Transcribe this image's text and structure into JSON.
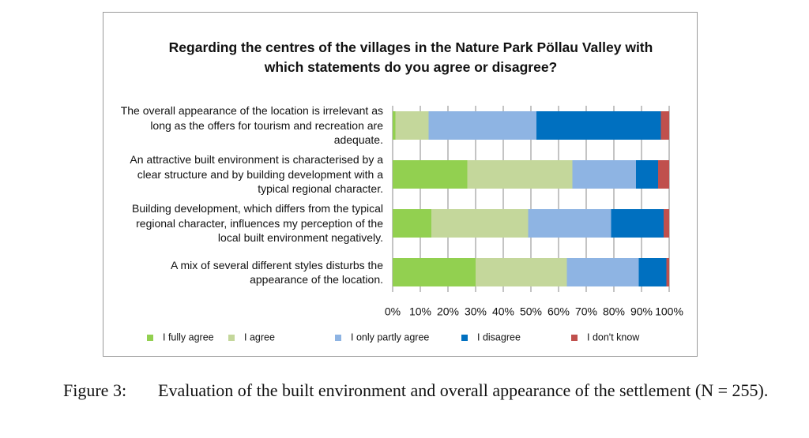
{
  "chart_data": {
    "type": "stacked-barh",
    "title": "Regarding the centres of the villages in the Nature Park Pöllau Valley with which statements do you agree or disagree?",
    "categories": [
      "The overall appearance of the location is irrelevant as long as the offers for tourism and recreation are adequate.",
      "An attractive built environment is characterised by a clear structure and by building development with a typical regional character.",
      "Building development, which differs from the typical regional character, influences my perception of the local built environment negatively.",
      "A mix of several different styles disturbs the appearance of the location."
    ],
    "series": [
      {
        "name": "I fully agree",
        "color": "#92d050",
        "values": [
          1,
          27,
          14,
          30
        ]
      },
      {
        "name": "I agree",
        "color": "#c4d79b",
        "values": [
          12,
          38,
          35,
          33
        ]
      },
      {
        "name": "I only partly agree",
        "color": "#8eb4e3",
        "values": [
          39,
          23,
          30,
          26
        ]
      },
      {
        "name": "I disagree",
        "color": "#0070c0",
        "values": [
          45,
          8,
          19,
          10
        ]
      },
      {
        "name": "I don't know",
        "color": "#c0504d",
        "values": [
          3,
          4,
          2,
          1
        ]
      }
    ],
    "xlim": [
      0,
      100
    ],
    "xticks": [
      {
        "value": 0,
        "label": "0%"
      },
      {
        "value": 10,
        "label": "10%"
      },
      {
        "value": 20,
        "label": "20%"
      },
      {
        "value": 30,
        "label": "30%"
      },
      {
        "value": 40,
        "label": "40%"
      },
      {
        "value": 50,
        "label": "50%"
      },
      {
        "value": 60,
        "label": "60%"
      },
      {
        "value": 70,
        "label": "70%"
      },
      {
        "value": 80,
        "label": "80%"
      },
      {
        "value": 90,
        "label": "90%"
      },
      {
        "value": 100,
        "label": "100%"
      }
    ],
    "grid": true,
    "legend": "bottom"
  },
  "caption": {
    "label": "Figure 3:",
    "text": "Evaluation of the built environment and overall appearance of the settlement (N = 255)."
  }
}
